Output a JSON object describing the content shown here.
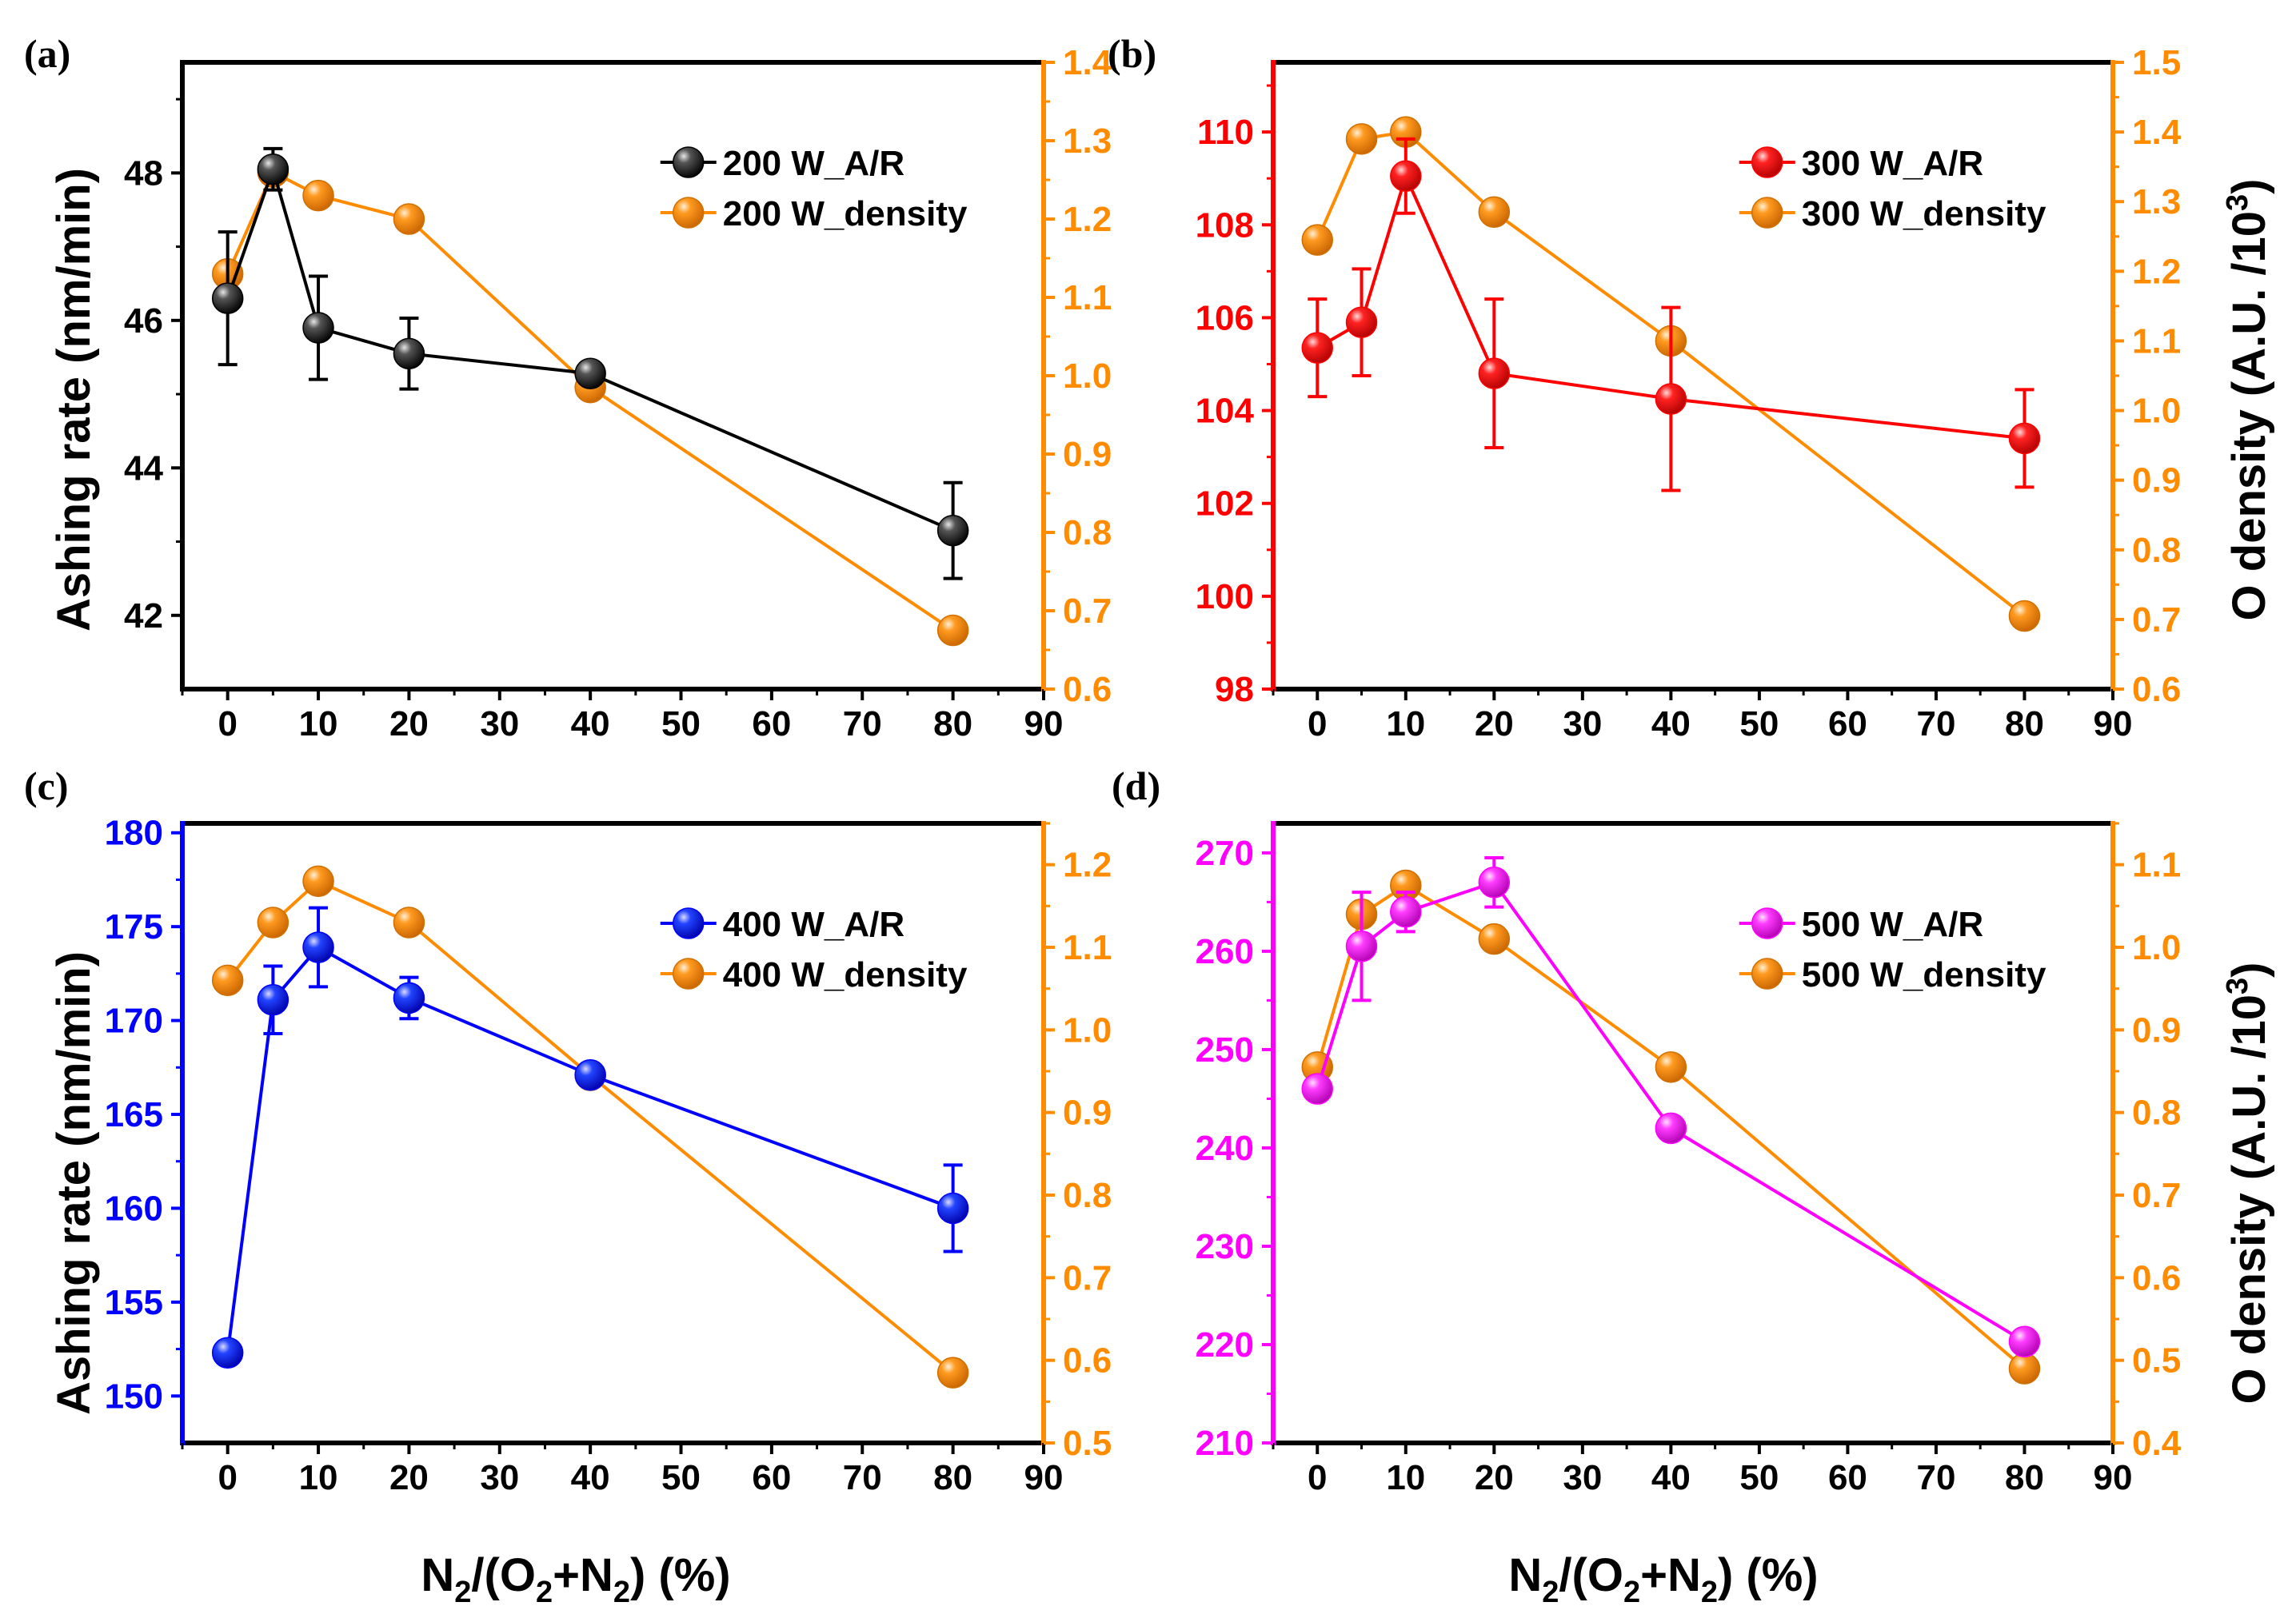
{
  "colors": {
    "density": "#ff8c00",
    "axis_black": "#000000"
  },
  "shared": {
    "xlabel_parts": [
      "N",
      "2",
      "/(O",
      "2",
      "+N",
      "2",
      ") (%)"
    ],
    "ylabel_left": "Ashing rate (nm/min)",
    "ylabel_right_parts": [
      "O density (A.U. /10",
      "3",
      ")"
    ]
  },
  "chart_data": [
    {
      "panel_label": "(a)",
      "type": "line",
      "x": [
        0,
        5,
        10,
        20,
        40,
        80
      ],
      "xlim": [
        -5,
        90
      ],
      "xticks": [
        0,
        10,
        20,
        30,
        40,
        50,
        60,
        70,
        80,
        90
      ],
      "ar": {
        "name": "200 W_A/R",
        "color": "#000000",
        "values": [
          46.3,
          48.05,
          45.9,
          45.55,
          45.28,
          43.15
        ],
        "errors": [
          0.9,
          0.28,
          0.7,
          0.48,
          0.12,
          0.65
        ]
      },
      "left_axis": {
        "color": "#000000",
        "lim": [
          41,
          49.5
        ],
        "ticks": [
          42,
          44,
          46,
          48
        ]
      },
      "density": {
        "name": "200 W_density",
        "color": "#ff8c00",
        "values": [
          1.13,
          1.26,
          1.23,
          1.2,
          0.985,
          0.675
        ]
      },
      "right_axis": {
        "color": "#ff8c00",
        "lim": [
          0.6,
          1.4
        ],
        "ticks": [
          0.6,
          0.7,
          0.8,
          0.9,
          1.0,
          1.1,
          1.2,
          1.3,
          1.4
        ]
      },
      "legend_position": "top-right"
    },
    {
      "panel_label": "(b)",
      "type": "line",
      "x": [
        0,
        5,
        10,
        20,
        40,
        80
      ],
      "xlim": [
        -5,
        90
      ],
      "xticks": [
        0,
        10,
        20,
        30,
        40,
        50,
        60,
        70,
        80,
        90
      ],
      "ar": {
        "name": "300 W_A/R",
        "color": "#ff0000",
        "values": [
          105.35,
          105.9,
          109.05,
          104.8,
          104.25,
          103.4
        ],
        "errors": [
          1.05,
          1.15,
          0.8,
          1.6,
          1.97,
          1.05
        ]
      },
      "left_axis": {
        "color": "#ff0000",
        "lim": [
          98,
          111.5
        ],
        "ticks": [
          98,
          100,
          102,
          104,
          106,
          108,
          110
        ]
      },
      "density": {
        "name": "300 W_density",
        "color": "#ff8c00",
        "values": [
          1.245,
          1.39,
          1.4,
          1.285,
          1.1,
          0.705
        ]
      },
      "right_axis": {
        "color": "#ff8c00",
        "lim": [
          0.6,
          1.5
        ],
        "ticks": [
          0.6,
          0.7,
          0.8,
          0.9,
          1.0,
          1.1,
          1.2,
          1.3,
          1.4,
          1.5
        ]
      },
      "legend_position": "top-right"
    },
    {
      "panel_label": "(c)",
      "type": "line",
      "x": [
        0,
        5,
        10,
        20,
        40,
        80
      ],
      "xlim": [
        -5,
        90
      ],
      "xticks": [
        0,
        10,
        20,
        30,
        40,
        50,
        60,
        70,
        80,
        90
      ],
      "ar": {
        "name": "400 W_A/R",
        "color": "#0000ff",
        "values": [
          152.3,
          171.1,
          173.9,
          171.2,
          167.1,
          160.0
        ],
        "errors": [
          0.4,
          1.8,
          2.1,
          1.1,
          0.3,
          2.3
        ]
      },
      "left_axis": {
        "color": "#0000ff",
        "lim": [
          147.5,
          180.5
        ],
        "ticks": [
          150,
          155,
          160,
          165,
          170,
          175,
          180
        ]
      },
      "density": {
        "name": "400 W_density",
        "color": "#ff8c00",
        "values": [
          1.06,
          1.13,
          1.18,
          1.13,
          0.945,
          0.585
        ]
      },
      "right_axis": {
        "color": "#ff8c00",
        "lim": [
          0.5,
          1.25
        ],
        "ticks": [
          0.5,
          0.6,
          0.7,
          0.8,
          0.9,
          1.0,
          1.1,
          1.2
        ]
      },
      "legend_position": "top-right"
    },
    {
      "panel_label": "(d)",
      "type": "line",
      "x": [
        0,
        5,
        10,
        20,
        40,
        80
      ],
      "xlim": [
        -5,
        90
      ],
      "xticks": [
        0,
        10,
        20,
        30,
        40,
        50,
        60,
        70,
        80,
        90
      ],
      "ar": {
        "name": "500 W_A/R",
        "color": "#ff00ff",
        "values": [
          246.0,
          260.5,
          264.0,
          267.0,
          242.0,
          220.3
        ],
        "errors": [
          0.6,
          5.5,
          2.0,
          2.5,
          0.5,
          0.8
        ]
      },
      "left_axis": {
        "color": "#ff00ff",
        "lim": [
          210,
          273
        ],
        "ticks": [
          210,
          220,
          230,
          240,
          250,
          260,
          270
        ]
      },
      "density": {
        "name": "500 W_density",
        "color": "#ff8c00",
        "values": [
          0.855,
          1.04,
          1.075,
          1.01,
          0.855,
          0.49
        ]
      },
      "right_axis": {
        "color": "#ff8c00",
        "lim": [
          0.4,
          1.15
        ],
        "ticks": [
          0.4,
          0.5,
          0.6,
          0.7,
          0.8,
          0.9,
          1.0,
          1.1
        ]
      },
      "legend_position": "top-right"
    }
  ]
}
